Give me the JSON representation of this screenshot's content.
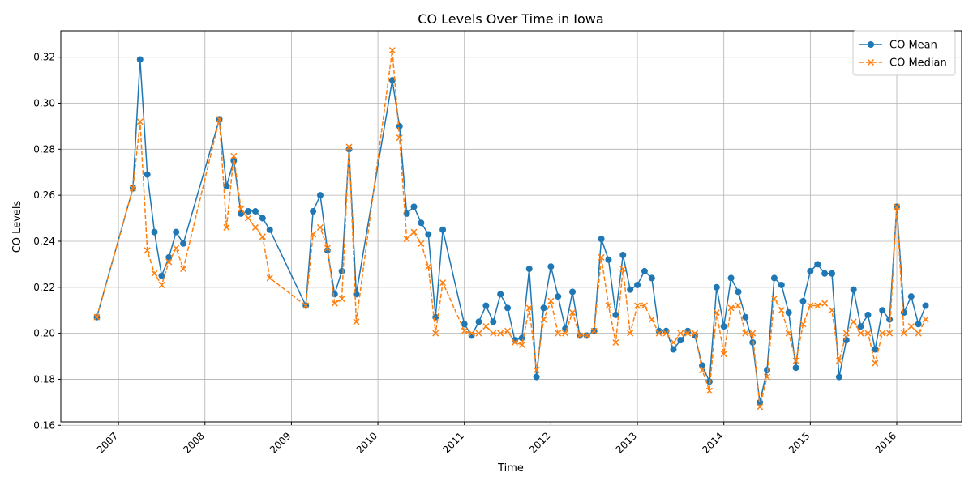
{
  "chart_data": {
    "type": "line",
    "title": "CO Levels Over Time in Iowa",
    "xlabel": "Time",
    "ylabel": "CO Levels",
    "x_ticks": [
      "2007",
      "2008",
      "2009",
      "2010",
      "2011",
      "2012",
      "2013",
      "2014",
      "2015",
      "2016"
    ],
    "y_ticks": [
      "0.16",
      "0.18",
      "0.20",
      "0.22",
      "0.24",
      "0.26",
      "0.28",
      "0.30",
      "0.32"
    ],
    "xlim": [
      "2006-05-01",
      "2016-10-01"
    ],
    "ylim": [
      0.1615,
      0.3315
    ],
    "grid": true,
    "legend_position": "top-right",
    "x": [
      "2006-10",
      "2007-03",
      "2007-04",
      "2007-05",
      "2007-06",
      "2007-07",
      "2007-08",
      "2007-09",
      "2007-10",
      "2008-03",
      "2008-04",
      "2008-05",
      "2008-06",
      "2008-07",
      "2008-08",
      "2008-09",
      "2008-10",
      "2009-03",
      "2009-04",
      "2009-05",
      "2009-06",
      "2009-07",
      "2009-08",
      "2009-09",
      "2009-10",
      "2010-03",
      "2010-04",
      "2010-05",
      "2010-06",
      "2010-07",
      "2010-08",
      "2010-09",
      "2010-10",
      "2011-01",
      "2011-02",
      "2011-03",
      "2011-04",
      "2011-05",
      "2011-06",
      "2011-07",
      "2011-08",
      "2011-09",
      "2011-10",
      "2011-11",
      "2011-12",
      "2012-01",
      "2012-02",
      "2012-03",
      "2012-04",
      "2012-05",
      "2012-06",
      "2012-07",
      "2012-08",
      "2012-09",
      "2012-10",
      "2012-11",
      "2012-12",
      "2013-01",
      "2013-02",
      "2013-03",
      "2013-04",
      "2013-05",
      "2013-06",
      "2013-07",
      "2013-08",
      "2013-09",
      "2013-10",
      "2013-11",
      "2013-12",
      "2014-01",
      "2014-02",
      "2014-03",
      "2014-04",
      "2014-05",
      "2014-06",
      "2014-07",
      "2014-08",
      "2014-09",
      "2014-10",
      "2014-11",
      "2014-12",
      "2015-01",
      "2015-02",
      "2015-03",
      "2015-04",
      "2015-05",
      "2015-06",
      "2015-07",
      "2015-08",
      "2015-09",
      "2015-10",
      "2015-11",
      "2015-12",
      "2016-01",
      "2016-02",
      "2016-03",
      "2016-04",
      "2016-05"
    ],
    "series": [
      {
        "name": "CO Mean",
        "color": "#1f77b4",
        "marker": "circle",
        "line_style": "solid",
        "values": [
          0.207,
          0.263,
          0.319,
          0.269,
          0.244,
          0.225,
          0.233,
          0.244,
          0.239,
          0.293,
          0.264,
          0.275,
          0.252,
          0.253,
          0.253,
          0.25,
          0.245,
          0.212,
          0.253,
          0.26,
          0.236,
          0.217,
          0.227,
          0.28,
          0.217,
          0.31,
          0.29,
          0.252,
          0.255,
          0.248,
          0.243,
          0.207,
          0.245,
          0.204,
          0.199,
          0.205,
          0.212,
          0.205,
          0.217,
          0.211,
          0.197,
          0.198,
          0.228,
          0.181,
          0.211,
          0.229,
          0.216,
          0.202,
          0.218,
          0.199,
          0.199,
          0.201,
          0.241,
          0.232,
          0.208,
          0.234,
          0.219,
          0.221,
          0.227,
          0.224,
          0.201,
          0.201,
          0.193,
          0.197,
          0.201,
          0.199,
          0.186,
          0.179,
          0.22,
          0.203,
          0.224,
          0.218,
          0.207,
          0.196,
          0.17,
          0.184,
          0.224,
          0.221,
          0.209,
          0.185,
          0.214,
          0.227,
          0.23,
          0.226,
          0.226,
          0.181,
          0.197,
          0.219,
          0.203,
          0.208,
          0.193,
          0.21,
          0.206,
          0.255,
          0.209,
          0.216,
          0.204,
          0.212
        ]
      },
      {
        "name": "CO Median",
        "color": "#ff7f0e",
        "marker": "x",
        "line_style": "dashed",
        "values": [
          0.207,
          0.263,
          0.292,
          0.236,
          0.226,
          0.221,
          0.231,
          0.237,
          0.228,
          0.293,
          0.246,
          0.277,
          0.254,
          0.25,
          0.246,
          0.242,
          0.224,
          0.212,
          0.243,
          0.246,
          0.237,
          0.213,
          0.215,
          0.281,
          0.205,
          0.323,
          0.285,
          0.241,
          0.244,
          0.239,
          0.229,
          0.2,
          0.222,
          0.201,
          0.2,
          0.2,
          0.203,
          0.2,
          0.2,
          0.201,
          0.196,
          0.195,
          0.211,
          0.184,
          0.206,
          0.214,
          0.2,
          0.2,
          0.209,
          0.199,
          0.199,
          0.201,
          0.233,
          0.212,
          0.196,
          0.228,
          0.2,
          0.212,
          0.212,
          0.206,
          0.2,
          0.2,
          0.196,
          0.2,
          0.2,
          0.2,
          0.184,
          0.175,
          0.209,
          0.191,
          0.211,
          0.212,
          0.2,
          0.2,
          0.168,
          0.181,
          0.215,
          0.21,
          0.2,
          0.188,
          0.204,
          0.212,
          0.212,
          0.213,
          0.21,
          0.188,
          0.2,
          0.205,
          0.2,
          0.2,
          0.187,
          0.2,
          0.2,
          0.255,
          0.2,
          0.203,
          0.2,
          0.206
        ]
      }
    ]
  }
}
